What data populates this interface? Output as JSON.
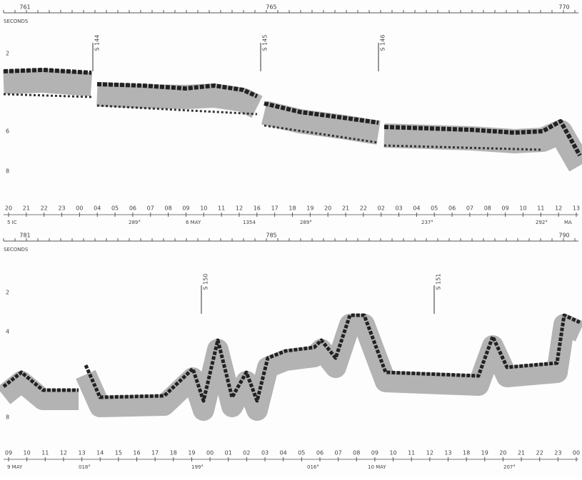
{
  "panels": [
    {
      "distance_labels": [
        "761",
        "765",
        "770"
      ],
      "axis_label": "SECONDS",
      "depth_labels": [
        "2",
        "6",
        "8"
      ],
      "stations": [
        "S 144",
        "S 145",
        "S 146"
      ],
      "hours": [
        "20",
        "21",
        "22",
        "23",
        "00",
        "04",
        "05",
        "06",
        "07",
        "08",
        "09",
        "10",
        "11",
        "12",
        "16",
        "17",
        "18",
        "19",
        "20",
        "21",
        "22",
        "02",
        "03",
        "04",
        "05",
        "06",
        "07",
        "08",
        "09",
        "10",
        "11",
        "12",
        "13"
      ],
      "notes": [
        "5 IC",
        "289°",
        "6 MAY",
        "1354",
        "289°",
        "237°",
        "292°",
        "MA"
      ]
    },
    {
      "distance_labels": [
        "781",
        "785",
        "790"
      ],
      "axis_label": "SECONDS",
      "depth_labels": [
        "2",
        "4",
        "8"
      ],
      "stations": [
        "S 150",
        "S 151"
      ],
      "hours": [
        "09",
        "10",
        "11",
        "12",
        "13",
        "14",
        "15",
        "16",
        "17",
        "18",
        "19",
        "00",
        "01",
        "02",
        "03",
        "04",
        "05",
        "06",
        "07",
        "08",
        "09",
        "10",
        "11",
        "12",
        "13",
        "18",
        "19",
        "20",
        "21",
        "22",
        "23",
        "00"
      ],
      "notes": [
        "9 MAY",
        "018°",
        "199°",
        "016°",
        "10 MAY",
        "207°"
      ]
    }
  ]
}
